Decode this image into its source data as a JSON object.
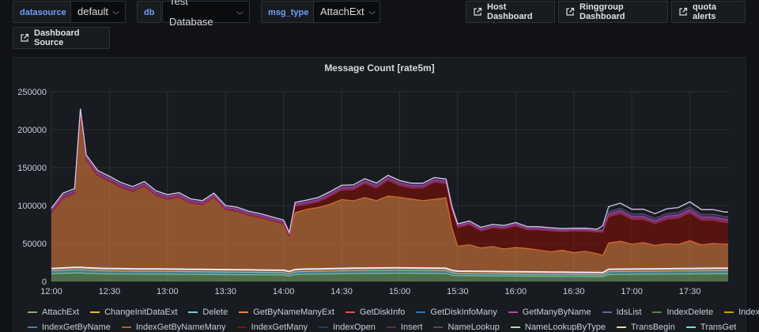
{
  "variables": [
    {
      "label": "datasource",
      "value": "default"
    },
    {
      "label": "db",
      "value": "Test Database"
    },
    {
      "label": "msg_type",
      "value": "AttachExt"
    }
  ],
  "links": [
    "Host Dashboard",
    "Ringgroup Dashboard",
    "quota alerts",
    "Dashboard Source"
  ],
  "panel": {
    "title": "Message Count [rate5m]"
  },
  "chart_data": {
    "type": "area",
    "title": "Message Count [rate5m]",
    "xlabel": "",
    "ylabel": "",
    "x_ticks": [
      "12:00",
      "12:30",
      "13:00",
      "13:30",
      "14:00",
      "14:30",
      "15:00",
      "15:30",
      "16:00",
      "16:30",
      "17:00",
      "17:30"
    ],
    "y_ticks": [
      "0",
      "50000",
      "100000",
      "150000",
      "200000",
      "250000"
    ],
    "ylim": [
      0,
      250000
    ],
    "x_range": [
      "12:00",
      "17:50"
    ],
    "stacked": true,
    "grid": true,
    "legend_position": "bottom",
    "x_hours": [
      12.0,
      12.1,
      12.2,
      12.25,
      12.3,
      12.4,
      12.5,
      12.6,
      12.7,
      12.8,
      12.9,
      13.0,
      13.1,
      13.2,
      13.3,
      13.4,
      13.5,
      13.6,
      13.7,
      13.8,
      13.9,
      14.0,
      14.05,
      14.1,
      14.2,
      14.3,
      14.4,
      14.5,
      14.6,
      14.7,
      14.8,
      14.9,
      15.0,
      15.1,
      15.2,
      15.3,
      15.4,
      15.45,
      15.5,
      15.6,
      15.7,
      15.8,
      15.9,
      16.0,
      16.1,
      16.2,
      16.3,
      16.4,
      16.5,
      16.6,
      16.7,
      16.75,
      16.8,
      16.9,
      17.0,
      17.1,
      17.2,
      17.3,
      17.4,
      17.5,
      17.6,
      17.7,
      17.8,
      17.83
    ],
    "series": [
      {
        "name": "AttachExt",
        "color": "#7eb26d",
        "values": [
          10000,
          10500,
          11000,
          11000,
          10500,
          10000,
          9800,
          9700,
          9600,
          9500,
          9500,
          9400,
          9300,
          9200,
          9100,
          9000,
          8900,
          8800,
          8700,
          8600,
          8500,
          8400,
          7000,
          9000,
          9400,
          9600,
          9800,
          10000,
          10200,
          10300,
          10400,
          10500,
          10600,
          10500,
          10400,
          10300,
          10200,
          8000,
          7500,
          7400,
          7300,
          7200,
          7100,
          7000,
          6900,
          6800,
          6700,
          6600,
          6500,
          6400,
          6300,
          6200,
          9000,
          9200,
          9300,
          9400,
          9500,
          9600,
          9700,
          9800,
          9900,
          10000,
          10000,
          10000
        ]
      },
      {
        "name": "Delete",
        "color": "#6ed0e0",
        "values": [
          4000,
          4200,
          4400,
          4500,
          4400,
          4300,
          4200,
          4100,
          4000,
          3900,
          3900,
          3800,
          3800,
          3700,
          3700,
          3600,
          3600,
          3500,
          3500,
          3400,
          3400,
          3300,
          3000,
          3600,
          3800,
          3900,
          4000,
          4100,
          4200,
          4200,
          4300,
          4300,
          4300,
          4200,
          4200,
          4100,
          4100,
          3500,
          3000,
          3000,
          2900,
          2900,
          2800,
          2800,
          2700,
          2700,
          2600,
          2600,
          2500,
          2500,
          2400,
          2400,
          3800,
          3900,
          4000,
          4000,
          4100,
          4100,
          4200,
          4200,
          4300,
          4300,
          4300,
          4300
        ]
      },
      {
        "name": "GetByNameManyExt",
        "color": "#ef843c",
        "values": [
          76000,
          95000,
          100000,
          205000,
          145000,
          125000,
          118000,
          110000,
          105000,
          112000,
          100000,
          95000,
          98000,
          90000,
          88000,
          98000,
          82000,
          80000,
          75000,
          72000,
          68000,
          64000,
          50000,
          78000,
          82000,
          84000,
          88000,
          94000,
          92000,
          96000,
          92000,
          98000,
          96000,
          94000,
          92000,
          94000,
          96000,
          60000,
          36000,
          38000,
          34000,
          36000,
          33000,
          35000,
          34000,
          32000,
          30000,
          32000,
          29000,
          31000,
          28000,
          26000,
          38000,
          40000,
          36000,
          38000,
          34000,
          36000,
          35000,
          40000,
          34000,
          36000,
          35000,
          35000
        ]
      },
      {
        "name": "IndexGetMany",
        "color": "#890f02",
        "values": [
          0,
          0,
          0,
          0,
          0,
          0,
          0,
          0,
          0,
          0,
          0,
          0,
          0,
          0,
          0,
          0,
          0,
          0,
          0,
          0,
          0,
          0,
          0,
          8000,
          6000,
          7000,
          10000,
          12000,
          14000,
          18000,
          16000,
          20000,
          15000,
          14000,
          16000,
          22000,
          18000,
          22000,
          24000,
          26000,
          22000,
          24000,
          26000,
          28000,
          24000,
          26000,
          27000,
          24000,
          28000,
          26000,
          28000,
          30000,
          34000,
          36000,
          32000,
          30000,
          28000,
          32000,
          34000,
          36000,
          32000,
          30000,
          28000,
          28000
        ]
      },
      {
        "name": "GetManyByName",
        "color": "#ba43a9",
        "values": [
          3500,
          3600,
          3700,
          3800,
          3700,
          3600,
          3500,
          3500,
          3400,
          3400,
          3300,
          3300,
          3200,
          3200,
          3100,
          3100,
          3000,
          3000,
          2900,
          2900,
          2800,
          2800,
          2500,
          3000,
          3200,
          3300,
          3400,
          3500,
          3600,
          3600,
          3700,
          3700,
          3700,
          3600,
          3600,
          3500,
          3500,
          3000,
          2800,
          2800,
          2700,
          2700,
          2600,
          2600,
          2500,
          2500,
          2400,
          2400,
          2300,
          2300,
          2200,
          2200,
          4000,
          4100,
          4200,
          4200,
          4300,
          4300,
          4400,
          4400,
          4500,
          4500,
          4500,
          4500
        ]
      },
      {
        "name": "NameLookup",
        "color": "#584477",
        "values": [
          3000,
          3100,
          3200,
          3300,
          3200,
          3100,
          3000,
          3000,
          2900,
          2900,
          2800,
          2800,
          2700,
          2700,
          2600,
          2600,
          2500,
          2500,
          2400,
          2400,
          2300,
          2300,
          2000,
          2600,
          2800,
          2900,
          3000,
          3100,
          3200,
          3200,
          3300,
          3300,
          3300,
          3200,
          3200,
          3100,
          3100,
          2600,
          2400,
          2400,
          2300,
          2300,
          2200,
          2200,
          2100,
          2100,
          2000,
          2000,
          1900,
          1900,
          1800,
          1800,
          3200,
          3300,
          3400,
          3400,
          3500,
          3500,
          3600,
          3600,
          3700,
          3700,
          3700,
          3700
        ]
      }
    ],
    "legend": [
      "AttachExt",
      "ChangeInitDataExt",
      "Delete",
      "GetByNameManyExt",
      "GetDiskInfo",
      "GetDiskInfoMany",
      "GetManyByName",
      "IdsList",
      "IndexDelete",
      "IndexGet",
      "IndexGetByName",
      "IndexGetByNameMany",
      "IndexGetMany",
      "IndexOpen",
      "Insert",
      "NameLookup",
      "NameLookupByType",
      "TransBegin",
      "TransGet"
    ],
    "legend_colors": [
      "#7eb26d",
      "#eab839",
      "#6ed0e0",
      "#ef843c",
      "#e24d42",
      "#1f78c1",
      "#ba43a9",
      "#705da0",
      "#508642",
      "#cca300",
      "#447ebc",
      "#c15c17",
      "#890f02",
      "#0a437c",
      "#6d1f62",
      "#584477",
      "#b7dbab",
      "#f4d598",
      "#70dbed"
    ],
    "icons": {
      "external_link": "external-link-icon",
      "dropdown": "chevron-down-icon"
    }
  }
}
